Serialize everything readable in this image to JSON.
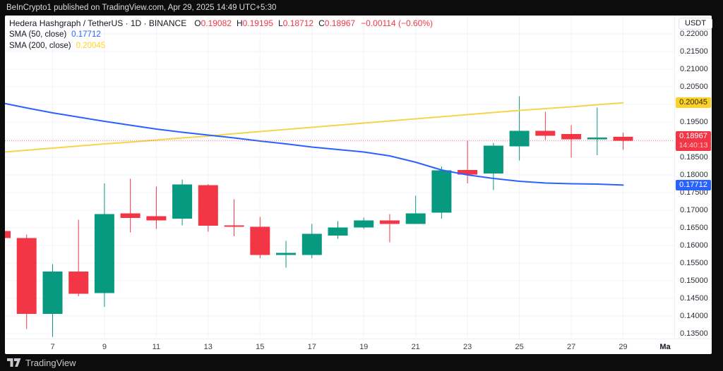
{
  "topbar": {
    "text": "BeInCrypto1 published on TradingView.com, Apr 29, 2025 14:49 UTC+5:30"
  },
  "legend": {
    "title": "Hedera Hashgraph / TetherUS · 1D · BINANCE",
    "ohlc": [
      {
        "k": "O",
        "v": "0.19082"
      },
      {
        "k": "H",
        "v": "0.19195"
      },
      {
        "k": "L",
        "v": "0.18712"
      },
      {
        "k": "C",
        "v": "0.18967"
      }
    ],
    "change": "−0.00114 (−0.60%)",
    "sma50_label": "SMA (50, close)",
    "sma50_value": "0.17712",
    "sma200_label": "SMA (200, close)",
    "sma200_value": "0.20045"
  },
  "axis": {
    "unit": "USDT",
    "ticks": [
      "0.22000",
      "0.21500",
      "0.21000",
      "0.20500",
      "0.19500",
      "0.18500",
      "0.18000",
      "0.17500",
      "0.17000",
      "0.16500",
      "0.16000",
      "0.15500",
      "0.15000",
      "0.14500",
      "0.14000",
      "0.13500"
    ],
    "badges": [
      {
        "name": "sma200-price-badge",
        "label": "0.20045",
        "price": 0.20045,
        "bg": "#fcd12a",
        "fg": "#352c00"
      },
      {
        "name": "last-price-badge",
        "label": "0.18967",
        "sub": "14:40:13",
        "price": 0.18967,
        "bg": "#f23645",
        "fg": "#ffffff",
        "subfg": "#ffc9cd"
      },
      {
        "name": "sma50-price-badge",
        "label": "0.17712",
        "price": 0.17712,
        "bg": "#2962ff",
        "fg": "#ffffff"
      }
    ],
    "time_labels": [
      {
        "label": "7",
        "i": 2
      },
      {
        "label": "9",
        "i": 4
      },
      {
        "label": "11",
        "i": 6
      },
      {
        "label": "13",
        "i": 8
      },
      {
        "label": "15",
        "i": 10
      },
      {
        "label": "17",
        "i": 12
      },
      {
        "label": "19",
        "i": 14
      },
      {
        "label": "21",
        "i": 16
      },
      {
        "label": "23",
        "i": 18
      },
      {
        "label": "25",
        "i": 20
      },
      {
        "label": "27",
        "i": 22
      },
      {
        "label": "29",
        "i": 24
      },
      {
        "label": "Ma",
        "i": 25.62,
        "bold": true
      }
    ]
  },
  "footer": {
    "brand": "TradingView"
  },
  "colors": {
    "up": "#089981",
    "down": "#f23645",
    "sma50": "#2962ff",
    "sma200": "#f6d44b",
    "grid": "#f0f3fa",
    "price_line": "#f23645"
  },
  "chart_data": {
    "type": "candlestick",
    "title": "Hedera Hashgraph / TetherUS · 1D · BINANCE",
    "ylabel": "USDT",
    "ylim": [
      0.1336,
      0.2252
    ],
    "grid": {
      "h_min": 0.135,
      "h_max": 0.22,
      "h_step": 0.005
    },
    "last_close": 0.18967,
    "x_unit": "April 2025 day of month",
    "candles": [
      {
        "day": 5,
        "o": 0.1641,
        "h": 0.1641,
        "l": 0.1621,
        "c": 0.1621,
        "partial": true
      },
      {
        "day": 6,
        "o": 0.1621,
        "h": 0.1631,
        "l": 0.1363,
        "c": 0.1406
      },
      {
        "day": 7,
        "o": 0.1406,
        "h": 0.1547,
        "l": 0.1341,
        "c": 0.1526
      },
      {
        "day": 8,
        "o": 0.1526,
        "h": 0.1673,
        "l": 0.1456,
        "c": 0.1463
      },
      {
        "day": 9,
        "o": 0.1465,
        "h": 0.1776,
        "l": 0.1426,
        "c": 0.1689
      },
      {
        "day": 10,
        "o": 0.1691,
        "h": 0.1789,
        "l": 0.1637,
        "c": 0.1678
      },
      {
        "day": 11,
        "o": 0.1683,
        "h": 0.1767,
        "l": 0.1647,
        "c": 0.1671
      },
      {
        "day": 12,
        "o": 0.1676,
        "h": 0.1787,
        "l": 0.1657,
        "c": 0.1773
      },
      {
        "day": 13,
        "o": 0.1771,
        "h": 0.1774,
        "l": 0.1639,
        "c": 0.1656
      },
      {
        "day": 14,
        "o": 0.1657,
        "h": 0.1731,
        "l": 0.1626,
        "c": 0.1653
      },
      {
        "day": 15,
        "o": 0.1653,
        "h": 0.1681,
        "l": 0.1564,
        "c": 0.1573
      },
      {
        "day": 16,
        "o": 0.1573,
        "h": 0.1613,
        "l": 0.1537,
        "c": 0.1579
      },
      {
        "day": 17,
        "o": 0.1573,
        "h": 0.1661,
        "l": 0.1564,
        "c": 0.1633
      },
      {
        "day": 18,
        "o": 0.1628,
        "h": 0.1669,
        "l": 0.1619,
        "c": 0.1651
      },
      {
        "day": 19,
        "o": 0.1651,
        "h": 0.1679,
        "l": 0.1647,
        "c": 0.1671
      },
      {
        "day": 20,
        "o": 0.1671,
        "h": 0.1689,
        "l": 0.1609,
        "c": 0.1661
      },
      {
        "day": 21,
        "o": 0.1661,
        "h": 0.1741,
        "l": 0.1661,
        "c": 0.1691
      },
      {
        "day": 22,
        "o": 0.1693,
        "h": 0.1824,
        "l": 0.1676,
        "c": 0.1813
      },
      {
        "day": 23,
        "o": 0.1814,
        "h": 0.1897,
        "l": 0.1776,
        "c": 0.1801
      },
      {
        "day": 24,
        "o": 0.1804,
        "h": 0.1891,
        "l": 0.1757,
        "c": 0.1883
      },
      {
        "day": 25,
        "o": 0.1881,
        "h": 0.2023,
        "l": 0.1841,
        "c": 0.1925
      },
      {
        "day": 26,
        "o": 0.1925,
        "h": 0.1979,
        "l": 0.1899,
        "c": 0.1911
      },
      {
        "day": 27,
        "o": 0.1916,
        "h": 0.1941,
        "l": 0.1849,
        "c": 0.1901
      },
      {
        "day": 28,
        "o": 0.1901,
        "h": 0.1991,
        "l": 0.1856,
        "c": 0.1906
      },
      {
        "day": 29,
        "o": 0.19082,
        "h": 0.19195,
        "l": 0.18712,
        "c": 0.18967
      }
    ],
    "series": [
      {
        "name": "SMA (50, close)",
        "values": [
          0.2005,
          0.199,
          0.1976,
          0.1964,
          0.1952,
          0.1941,
          0.193,
          0.1921,
          0.1913,
          0.1905,
          0.1896,
          0.1888,
          0.1879,
          0.1872,
          0.1865,
          0.1854,
          0.1836,
          0.1814,
          0.18,
          0.179,
          0.1782,
          0.1777,
          0.1775,
          0.1774,
          0.17712
        ]
      },
      {
        "name": "SMA (200, close)",
        "values": [
          0.1864,
          0.187,
          0.1876,
          0.1882,
          0.1888,
          0.1893,
          0.1899,
          0.1905,
          0.191,
          0.1917,
          0.1923,
          0.1929,
          0.1935,
          0.1941,
          0.1947,
          0.1953,
          0.1959,
          0.1965,
          0.1971,
          0.1977,
          0.1983,
          0.1988,
          0.1993,
          0.1999,
          0.20045
        ]
      }
    ]
  }
}
